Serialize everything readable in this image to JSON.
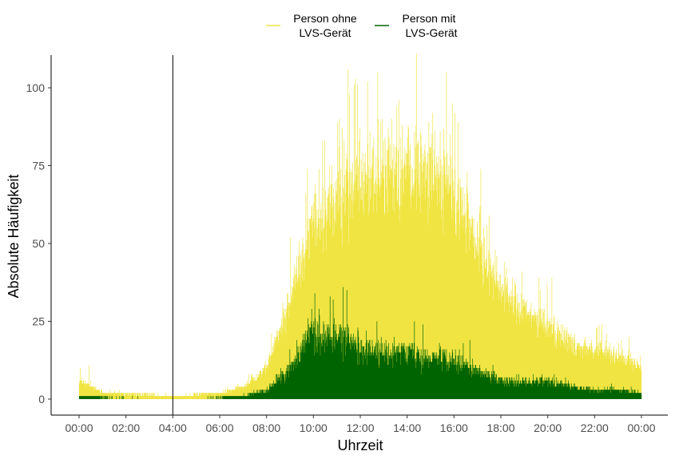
{
  "chart_data": {
    "type": "bar",
    "xlabel": "Uhrzeit",
    "ylabel": "Absolute Häufigkeit",
    "xlim_minutes": [
      0,
      1440
    ],
    "ylim": [
      0,
      110
    ],
    "x_ticks": [
      "00:00",
      "02:00",
      "04:00",
      "06:00",
      "08:00",
      "10:00",
      "12:00",
      "14:00",
      "16:00",
      "18:00",
      "20:00",
      "22:00",
      "00:00"
    ],
    "y_ticks": [
      0,
      25,
      50,
      75,
      100
    ],
    "vline_time": "04:00",
    "legend_position": "top",
    "grid": false,
    "series": [
      {
        "name": "Person ohne\nLVS-Gerät",
        "legend_line1": "Person ohne",
        "legend_line2": "LVS-Gerät",
        "color": "#f0e442",
        "hourly_profile": [
          6,
          2,
          1.5,
          1.5,
          1,
          1.5,
          2,
          4,
          10,
          32,
          58,
          66,
          70,
          72,
          74,
          76,
          66,
          50,
          36,
          28,
          24,
          18,
          16,
          14,
          10
        ],
        "noise": 0.32,
        "peaks": [
          [
            "00:02",
            10
          ],
          [
            "00:25",
            11
          ],
          [
            "15:40",
            105
          ],
          [
            "14:55",
            89
          ],
          [
            "12:45",
            90
          ],
          [
            "09:40",
            66
          ],
          [
            "20:10",
            39
          ]
        ]
      },
      {
        "name": "Person mit\nLVS-Gerät",
        "legend_line1": "Person mit",
        "legend_line2": "LVS-Gerät",
        "color": "#006400",
        "hourly_profile": [
          1,
          0.5,
          0.4,
          0.3,
          0.3,
          0.3,
          0.5,
          1,
          3,
          10,
          22,
          20,
          17,
          15,
          14,
          14,
          13,
          9,
          6,
          5,
          6,
          4,
          3,
          3,
          2
        ],
        "noise": 0.45,
        "peaks": [
          [
            "11:15",
            36
          ],
          [
            "11:25",
            35
          ],
          [
            "09:55",
            29
          ],
          [
            "14:40",
            24
          ]
        ]
      }
    ]
  }
}
